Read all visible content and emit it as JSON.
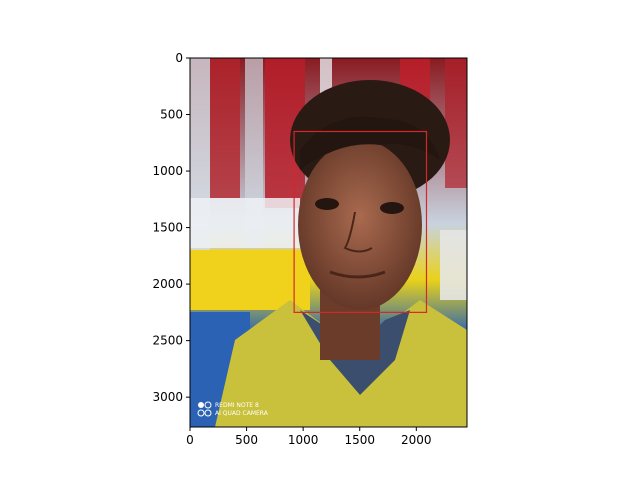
{
  "figure": {
    "watermark": {
      "line1": "REDMI NOTE 8",
      "line2": "AI QUAD CAMERA"
    },
    "image_extent": {
      "width": 2448,
      "height": 3264
    },
    "bbox_data": {
      "x0": 920,
      "y0": 650,
      "x1": 2090,
      "y1": 2250,
      "color": "#d62728"
    },
    "chart_data": {
      "type": "image",
      "xticks": [
        0,
        500,
        1000,
        1500,
        2000
      ],
      "yticks": [
        0,
        500,
        1000,
        1500,
        2000,
        2500,
        3000
      ],
      "xlim": [
        0,
        2448
      ],
      "ylim": [
        3264,
        0
      ],
      "xtick_labels": [
        "0",
        "500",
        "1000",
        "1500",
        "2000"
      ],
      "ytick_labels": [
        "0",
        "500",
        "1000",
        "1500",
        "2000",
        "2500",
        "3000"
      ]
    }
  }
}
